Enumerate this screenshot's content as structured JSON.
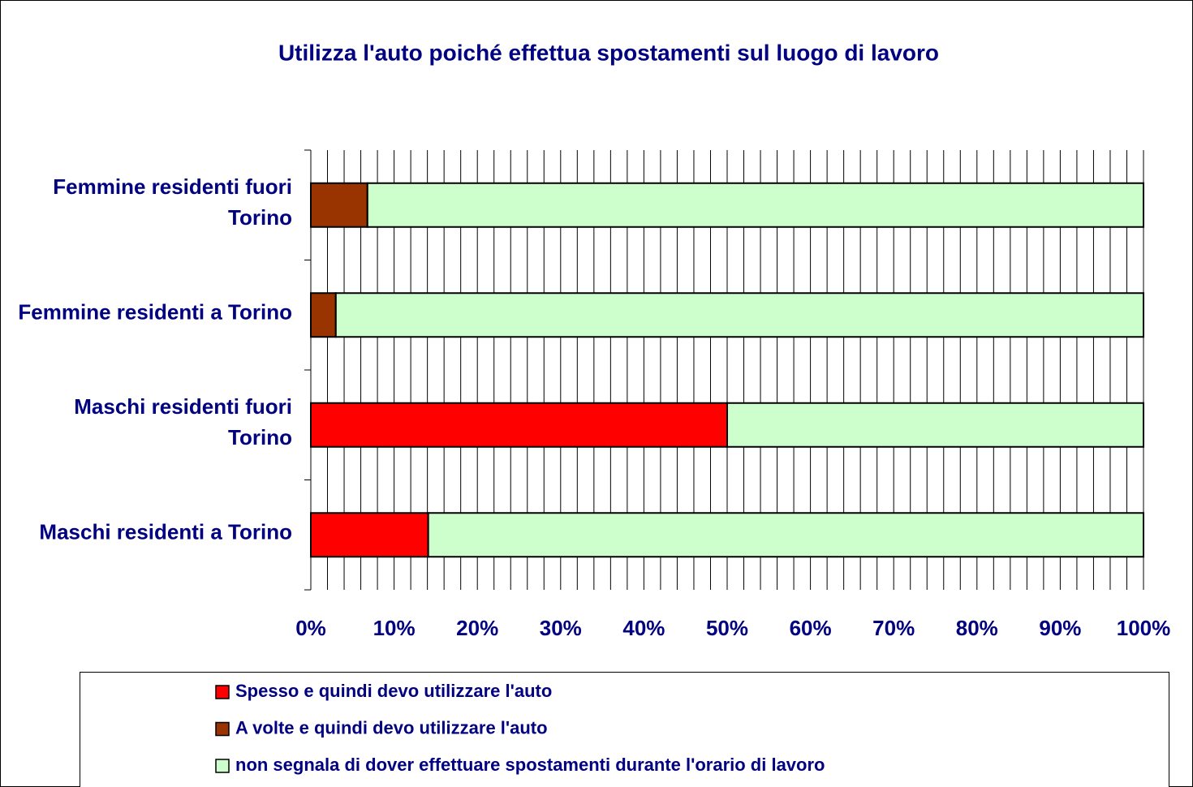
{
  "chart_data": {
    "type": "stacked_bar_horizontal",
    "title": "Utilizza l'auto poiché effettua spostamenti sul luogo di lavoro",
    "categories": [
      "Femmine residenti fuori Torino",
      "Femmine residenti a Torino",
      "Maschi residenti fuori Torino",
      "Maschi residenti a Torino"
    ],
    "series": [
      {
        "name": "Spesso e quindi devo utilizzare l'auto",
        "color": "#ff0000",
        "values": [
          0,
          0,
          50,
          14.1
        ]
      },
      {
        "name": "A volte e quindi devo utilizzare l'auto",
        "color": "#993300",
        "values": [
          6.8,
          3,
          0,
          0
        ]
      },
      {
        "name": "non segnala di dover effettuare spostamenti durante l'orario di lavoro",
        "color": "#ccffcc",
        "values": [
          93.2,
          97,
          50,
          85.9
        ]
      }
    ],
    "xlim": [
      0,
      100
    ],
    "xticks": [
      {
        "value": 0,
        "label": "0%"
      },
      {
        "value": 10,
        "label": "10%"
      },
      {
        "value": 20,
        "label": "20%"
      },
      {
        "value": 30,
        "label": "30%"
      },
      {
        "value": 40,
        "label": "40%"
      },
      {
        "value": 50,
        "label": "50%"
      },
      {
        "value": 60,
        "label": "60%"
      },
      {
        "value": 70,
        "label": "70%"
      },
      {
        "value": 80,
        "label": "80%"
      },
      {
        "value": 90,
        "label": "90%"
      },
      {
        "value": 100,
        "label": "100%"
      }
    ],
    "xminorticks": [
      2,
      4,
      6,
      8,
      12,
      14,
      16,
      18,
      22,
      24,
      26,
      28,
      32,
      34,
      36,
      38,
      42,
      44,
      46,
      48,
      52,
      54,
      56,
      58,
      62,
      64,
      66,
      68,
      72,
      74,
      76,
      78,
      82,
      84,
      86,
      88,
      92,
      94,
      96,
      98
    ],
    "grid": true,
    "legend": "bottom"
  }
}
